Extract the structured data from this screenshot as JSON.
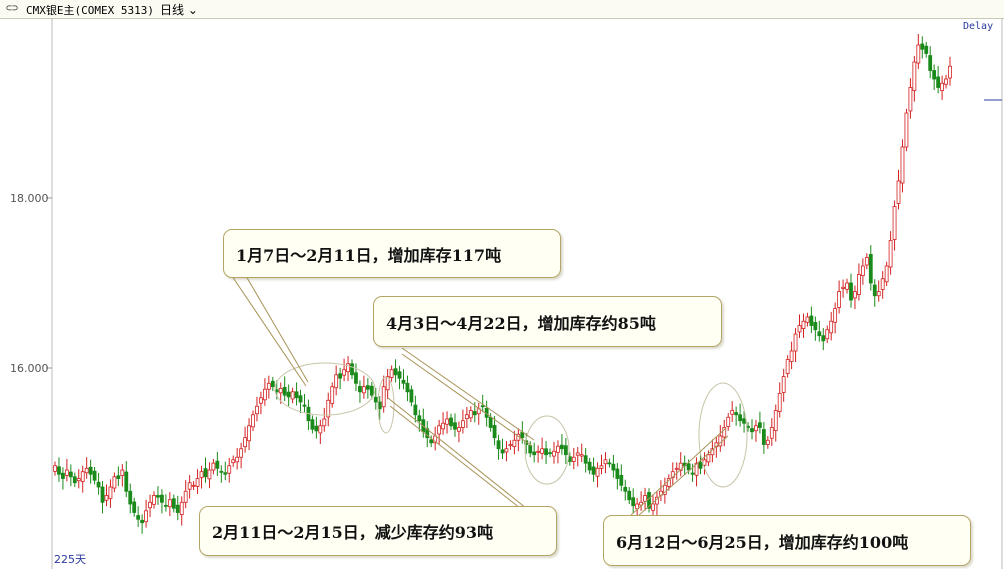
{
  "toolbar": {
    "icon": "link-icon",
    "symbol": "CMX银E主(COMEX 5313)",
    "period": "日线"
  },
  "delay_label": "Delay",
  "bar_count_label": "225天",
  "callouts": [
    "1月7日～2月11日，增加库存117吨",
    "4月3日～4月22日，增加库存约85吨",
    "2月11日～2月15日，减少库存约93吨",
    "6月12日～6月25日，增加库存约100吨"
  ],
  "colors": {
    "up": "#d42020",
    "down": "#1a8a1a",
    "annotation": "#a89358",
    "delay": "#2a3aa0"
  },
  "chart_data": {
    "type": "candlestick",
    "yticks": [
      16.0,
      18.0
    ],
    "ytick_labels": [
      "16.000",
      "18.000"
    ],
    "ylim": [
      14.6,
      20.0
    ],
    "grid": false,
    "closes": [
      14.85,
      14.75,
      14.7,
      14.8,
      14.72,
      14.65,
      14.7,
      14.78,
      14.82,
      14.75,
      14.68,
      14.6,
      14.42,
      14.5,
      14.6,
      14.72,
      14.7,
      14.8,
      14.55,
      14.4,
      14.3,
      14.22,
      14.18,
      14.32,
      14.42,
      14.5,
      14.48,
      14.42,
      14.38,
      14.45,
      14.35,
      14.3,
      14.42,
      14.55,
      14.65,
      14.62,
      14.7,
      14.78,
      14.72,
      14.8,
      14.88,
      14.82,
      14.78,
      14.75,
      14.85,
      14.92,
      14.95,
      15.05,
      15.18,
      15.32,
      15.45,
      15.55,
      15.65,
      15.75,
      15.82,
      15.78,
      15.72,
      15.76,
      15.68,
      15.66,
      15.72,
      15.65,
      15.6,
      15.55,
      15.38,
      15.28,
      15.26,
      15.32,
      15.4,
      15.62,
      15.78,
      15.92,
      15.88,
      15.98,
      16.05,
      15.92,
      15.82,
      15.72,
      15.78,
      15.75,
      15.68,
      15.6,
      15.52,
      15.78,
      15.9,
      15.98,
      15.92,
      15.88,
      15.82,
      15.72,
      15.6,
      15.45,
      15.38,
      15.25,
      15.18,
      15.12,
      15.2,
      15.32,
      15.35,
      15.4,
      15.32,
      15.28,
      15.3,
      15.38,
      15.45,
      15.5,
      15.45,
      15.52,
      15.55,
      15.42,
      15.3,
      15.18,
      15.05,
      15.0,
      15.05,
      15.1,
      15.15,
      15.22,
      15.18,
      15.1,
      15.0,
      14.98,
      15.02,
      15.05,
      14.98,
      15.0,
      15.02,
      15.08,
      15.05,
      14.98,
      14.9,
      14.95,
      15.0,
      14.98,
      14.88,
      14.8,
      14.75,
      14.82,
      14.85,
      14.92,
      14.88,
      14.8,
      14.7,
      14.62,
      14.55,
      14.45,
      14.38,
      14.4,
      14.42,
      14.5,
      14.35,
      14.4,
      14.48,
      14.55,
      14.62,
      14.7,
      14.78,
      14.82,
      14.88,
      14.85,
      14.8,
      14.75,
      14.88,
      14.82,
      14.92,
      14.98,
      15.05,
      15.12,
      15.2,
      15.3,
      15.42,
      15.5,
      15.45,
      15.38,
      15.35,
      15.3,
      15.25,
      15.32,
      15.3,
      15.1,
      15.15,
      15.3,
      15.5,
      15.7,
      15.9,
      16.1,
      16.2,
      16.4,
      16.5,
      16.55,
      16.6,
      16.5,
      16.45,
      16.38,
      16.32,
      16.45,
      16.55,
      16.7,
      16.9,
      16.95,
      17.0,
      16.8,
      16.9,
      17.1,
      17.2,
      17.3,
      17.0,
      16.85,
      16.9,
      17.05,
      17.2,
      17.5,
      17.9,
      18.2,
      18.6,
      19.0,
      19.3,
      19.6,
      19.8,
      19.75,
      19.7,
      19.5,
      19.4,
      19.3,
      19.35,
      19.4,
      19.55
    ]
  }
}
